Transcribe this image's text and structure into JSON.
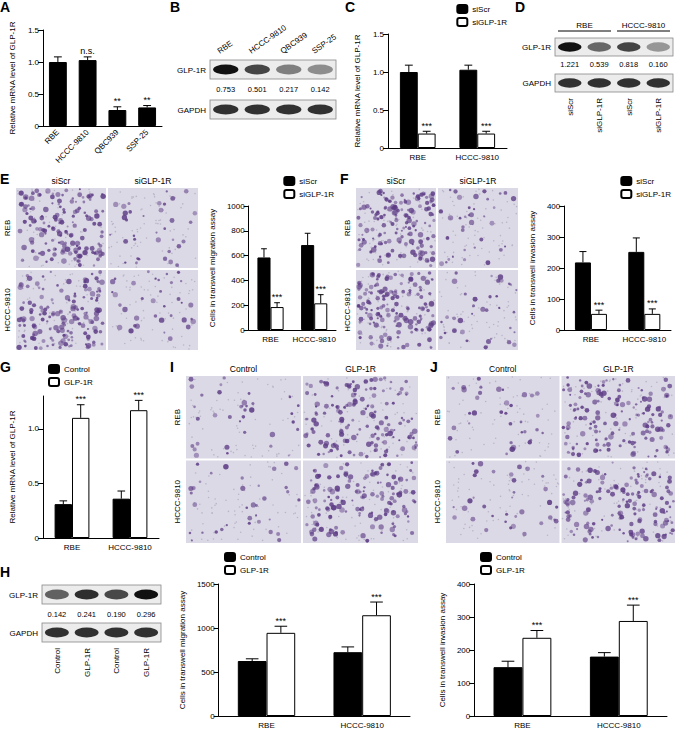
{
  "chart_data": [
    {
      "panel": "A",
      "type": "bar",
      "ylabel": "Relative mRNA level of GLP-1R",
      "categories": [
        "RBE",
        "HCCC-9810",
        "QBC939",
        "SSP-25"
      ],
      "values": [
        1.0,
        1.03,
        0.25,
        0.29
      ],
      "errors": [
        0.08,
        0.05,
        0.05,
        0.03
      ],
      "annotations": [
        null,
        "n.s.",
        "**",
        "**"
      ],
      "color": "#000000",
      "ylim": [
        0,
        1.5
      ],
      "yticks": [
        0,
        0.5,
        {
          "value": 1,
          "label": "1.0"
        },
        1.5
      ],
      "grid": false
    },
    {
      "panel": "C",
      "type": "bar",
      "ylabel": "Relative mRNA level of GLP-1R",
      "categories": [
        "RBE",
        "HCCC-9810"
      ],
      "series": [
        {
          "name": "siScr",
          "color": "#000000",
          "values": [
            1.0,
            1.03
          ],
          "errors": [
            0.09,
            0.06
          ]
        },
        {
          "name": "siGLP-1R",
          "color": "#ffffff",
          "values": [
            0.19,
            0.19
          ],
          "errors": [
            0.03,
            0.03
          ],
          "annotations": [
            "***",
            "***"
          ]
        }
      ],
      "ylim": [
        0,
        1.5
      ],
      "yticks": [
        0,
        0.5,
        {
          "value": 1,
          "label": "1.0"
        },
        1.5
      ],
      "legend": "upper right",
      "grid": false
    },
    {
      "type": "bar",
      "ylabel": "Cells in transwell migration assay",
      "categories": [
        "RBE",
        "HCCC-9810"
      ],
      "series": [
        {
          "name": "siScr",
          "color": "#000000",
          "values": [
            585,
            685
          ],
          "errors": [
            70,
            95
          ]
        },
        {
          "name": "siGLP-1R",
          "color": "#ffffff",
          "values": [
            185,
            215
          ],
          "errors": [
            35,
            70
          ],
          "annotations": [
            "***",
            "***"
          ]
        }
      ],
      "ylim": [
        0,
        1000
      ],
      "yticks": [
        0,
        200,
        400,
        600,
        800,
        1000
      ],
      "legend": "upper right",
      "grid": false
    },
    {
      "type": "bar",
      "ylabel": "Cells in transwell invasion assay",
      "categories": [
        "RBE",
        "HCCC-9810"
      ],
      "series": [
        {
          "name": "siScr",
          "color": "#000000",
          "values": [
            218,
            252
          ],
          "errors": [
            35,
            45
          ]
        },
        {
          "name": "siGLP-1R",
          "color": "#ffffff",
          "values": [
            52,
            52
          ],
          "errors": [
            12,
            16
          ],
          "annotations": [
            "***",
            "***"
          ]
        }
      ],
      "ylim": [
        0,
        400
      ],
      "yticks": [
        0,
        100,
        200,
        300,
        400
      ],
      "legend": "upper right",
      "grid": false
    },
    {
      "panel": "G",
      "type": "bar",
      "ylabel": "Relative mRNA level of GLP-1R",
      "categories": [
        "RBE",
        "HCCC-9810"
      ],
      "series": [
        {
          "name": "Control",
          "color": "#000000",
          "values": [
            0.31,
            0.36
          ],
          "errors": [
            0.03,
            0.07
          ]
        },
        {
          "name": "GLP-1R",
          "color": "#ffffff",
          "values": [
            1.1,
            1.17
          ],
          "errors": [
            0.12,
            0.09
          ],
          "annotations": [
            "***",
            "***"
          ]
        }
      ],
      "ylim": [
        0,
        1.3
      ],
      "yticks": [
        0,
        0.5,
        {
          "value": 1,
          "label": "1.0"
        }
      ],
      "legend": "upper left",
      "grid": false
    },
    {
      "type": "bar",
      "ylabel": "Cells in transwell migration assay",
      "categories": [
        "RBE",
        "HCCC-9810"
      ],
      "series": [
        {
          "name": "Control",
          "color": "#000000",
          "values": [
            625,
            725
          ],
          "errors": [
            25,
            60
          ]
        },
        {
          "name": "GLP-1R",
          "color": "#ffffff",
          "values": [
            945,
            1145
          ],
          "errors": [
            75,
            150
          ],
          "annotations": [
            "***",
            "***"
          ]
        }
      ],
      "ylim": [
        0,
        1500
      ],
      "yticks": [
        0,
        500,
        1000,
        1500
      ],
      "legend": "upper left",
      "grid": false
    },
    {
      "type": "bar",
      "ylabel": "Cells in transwell invasion assay",
      "categories": [
        "RBE",
        "HCCC-9810"
      ],
      "series": [
        {
          "name": "Control",
          "color": "#000000",
          "values": [
            148,
            180
          ],
          "errors": [
            18,
            12
          ]
        },
        {
          "name": "GLP-1R",
          "color": "#ffffff",
          "values": [
            237,
            288
          ],
          "errors": [
            22,
            48
          ],
          "annotations": [
            "***",
            "***"
          ]
        }
      ],
      "ylim": [
        0,
        400
      ],
      "yticks": [
        0,
        100,
        200,
        300,
        400
      ],
      "legend": "upper left",
      "grid": false
    }
  ],
  "blots": [
    {
      "panel": "B",
      "rows": [
        "GLP-1R",
        "GAPDH"
      ],
      "lanes_top": [
        "RBE",
        "HCCC-9810",
        "QBC939",
        "SSP-25"
      ],
      "quantities": [
        0.753,
        0.501,
        0.217,
        0.142
      ]
    },
    {
      "panel": "D",
      "rows": [
        "GLP-1R",
        "GAPDH"
      ],
      "groups": [
        "RBE",
        "HCCC-9810"
      ],
      "lanes_bottom": [
        "siScr",
        "siGLP-1R",
        "siScr",
        "siGLP-1R"
      ],
      "quantities": [
        1.221,
        0.539,
        0.818,
        {
          "value": 0.16,
          "label": "0.160"
        }
      ]
    },
    {
      "panel": "H",
      "rows": [
        "GLP-1R",
        "GAPDH"
      ],
      "lanes_bottom": [
        "Control",
        "GLP-1R",
        "Control",
        "GLP-1R"
      ],
      "quantities": [
        0.142,
        0.241,
        {
          "value": 0.19,
          "label": "0.190"
        },
        0.296
      ]
    }
  ],
  "micrographs": [
    {
      "panel": "E",
      "columns": [
        "siScr",
        "siGLP-1R"
      ],
      "rows": [
        "REB",
        "HCCC-9810"
      ]
    },
    {
      "panel": "F",
      "columns": [
        "siScr",
        "siGLP-1R"
      ],
      "rows": [
        "REB",
        "HCCC-9810"
      ]
    },
    {
      "panel": "I",
      "columns": [
        "Control",
        "GLP-1R"
      ],
      "rows": [
        "REB",
        "HCCC-9810"
      ]
    },
    {
      "panel": "J",
      "columns": [
        "Control",
        "GLP-1R"
      ],
      "rows": [
        "REB",
        "HCCC-9810"
      ]
    }
  ]
}
